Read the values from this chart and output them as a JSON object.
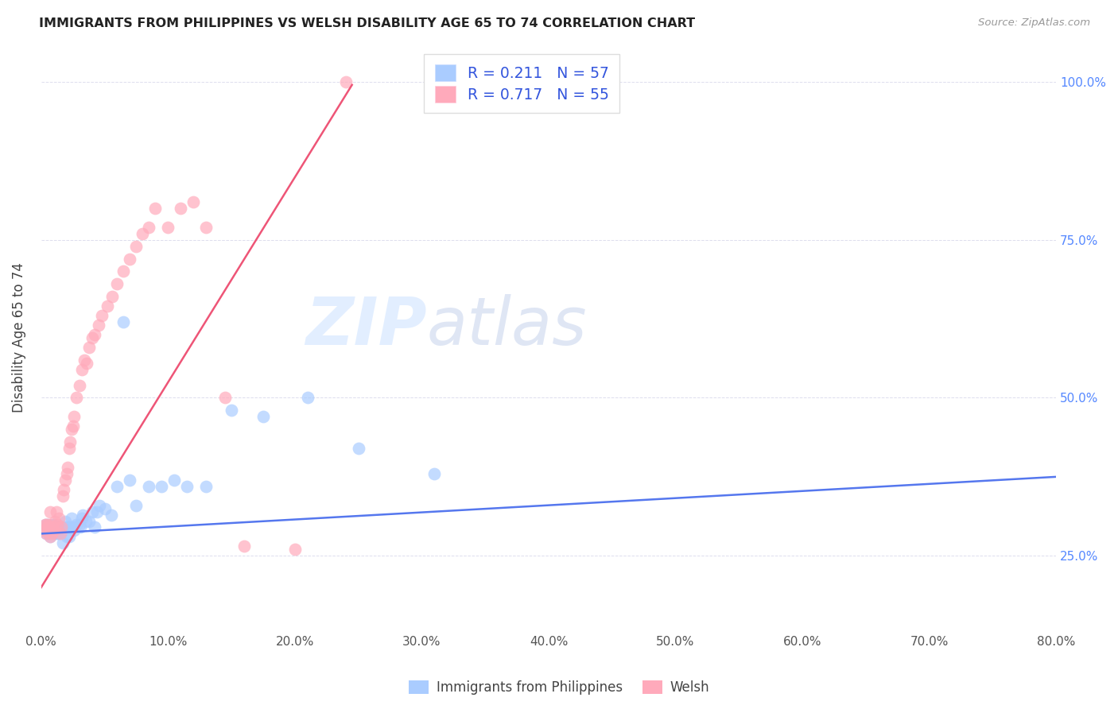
{
  "title": "IMMIGRANTS FROM PHILIPPINES VS WELSH DISABILITY AGE 65 TO 74 CORRELATION CHART",
  "source": "Source: ZipAtlas.com",
  "ylabel": "Disability Age 65 to 74",
  "xlim": [
    0.0,
    0.8
  ],
  "ylim": [
    0.13,
    1.06
  ],
  "legend_label1": "Immigrants from Philippines",
  "legend_label2": "Welsh",
  "r1": "0.211",
  "n1": "57",
  "r2": "0.717",
  "n2": "55",
  "color1": "#aaccff",
  "color2": "#ffaabb",
  "trendline1_color": "#5577ee",
  "trendline2_color": "#ee5577",
  "watermark_zip": "ZIP",
  "watermark_atlas": "atlas",
  "scatter1_x": [
    0.002,
    0.003,
    0.004,
    0.005,
    0.005,
    0.006,
    0.006,
    0.007,
    0.008,
    0.009,
    0.01,
    0.01,
    0.011,
    0.012,
    0.013,
    0.013,
    0.014,
    0.015,
    0.016,
    0.017,
    0.018,
    0.018,
    0.019,
    0.02,
    0.021,
    0.022,
    0.023,
    0.024,
    0.025,
    0.026,
    0.028,
    0.03,
    0.031,
    0.032,
    0.033,
    0.035,
    0.038,
    0.04,
    0.042,
    0.044,
    0.046,
    0.05,
    0.055,
    0.06,
    0.065,
    0.07,
    0.075,
    0.085,
    0.095,
    0.105,
    0.115,
    0.13,
    0.15,
    0.175,
    0.21,
    0.25,
    0.31
  ],
  "scatter1_y": [
    0.29,
    0.3,
    0.285,
    0.295,
    0.3,
    0.285,
    0.295,
    0.28,
    0.295,
    0.3,
    0.3,
    0.295,
    0.285,
    0.295,
    0.29,
    0.285,
    0.285,
    0.29,
    0.295,
    0.27,
    0.295,
    0.29,
    0.305,
    0.28,
    0.295,
    0.28,
    0.295,
    0.31,
    0.295,
    0.29,
    0.3,
    0.3,
    0.295,
    0.31,
    0.315,
    0.305,
    0.305,
    0.32,
    0.295,
    0.32,
    0.33,
    0.325,
    0.315,
    0.36,
    0.62,
    0.37,
    0.33,
    0.36,
    0.36,
    0.37,
    0.36,
    0.36,
    0.48,
    0.47,
    0.5,
    0.42,
    0.38
  ],
  "scatter2_x": [
    0.002,
    0.003,
    0.004,
    0.004,
    0.005,
    0.005,
    0.006,
    0.007,
    0.007,
    0.008,
    0.009,
    0.01,
    0.011,
    0.012,
    0.013,
    0.014,
    0.015,
    0.016,
    0.017,
    0.018,
    0.019,
    0.02,
    0.021,
    0.022,
    0.023,
    0.024,
    0.025,
    0.026,
    0.028,
    0.03,
    0.032,
    0.034,
    0.036,
    0.038,
    0.04,
    0.042,
    0.045,
    0.048,
    0.052,
    0.056,
    0.06,
    0.065,
    0.07,
    0.075,
    0.08,
    0.085,
    0.09,
    0.1,
    0.11,
    0.12,
    0.13,
    0.145,
    0.16,
    0.2,
    0.24
  ],
  "scatter2_y": [
    0.29,
    0.3,
    0.285,
    0.3,
    0.295,
    0.29,
    0.3,
    0.32,
    0.28,
    0.285,
    0.295,
    0.29,
    0.305,
    0.32,
    0.3,
    0.31,
    0.285,
    0.295,
    0.345,
    0.355,
    0.37,
    0.38,
    0.39,
    0.42,
    0.43,
    0.45,
    0.455,
    0.47,
    0.5,
    0.52,
    0.545,
    0.56,
    0.555,
    0.58,
    0.595,
    0.6,
    0.615,
    0.63,
    0.645,
    0.66,
    0.68,
    0.7,
    0.72,
    0.74,
    0.76,
    0.77,
    0.8,
    0.77,
    0.8,
    0.81,
    0.77,
    0.5,
    0.265,
    0.26,
    1.0
  ],
  "trendline1_x": [
    0.0,
    0.8
  ],
  "trendline1_y": [
    0.285,
    0.375
  ],
  "trendline2_x": [
    0.0,
    0.245
  ],
  "trendline2_y": [
    0.2,
    0.995
  ],
  "xtick_positions": [
    0.0,
    0.1,
    0.2,
    0.3,
    0.4,
    0.5,
    0.6,
    0.7,
    0.8
  ],
  "ytick_positions": [
    0.25,
    0.5,
    0.75,
    1.0
  ],
  "ytick_labels": [
    "25.0%",
    "50.0%",
    "75.0%",
    "100.0%"
  ]
}
